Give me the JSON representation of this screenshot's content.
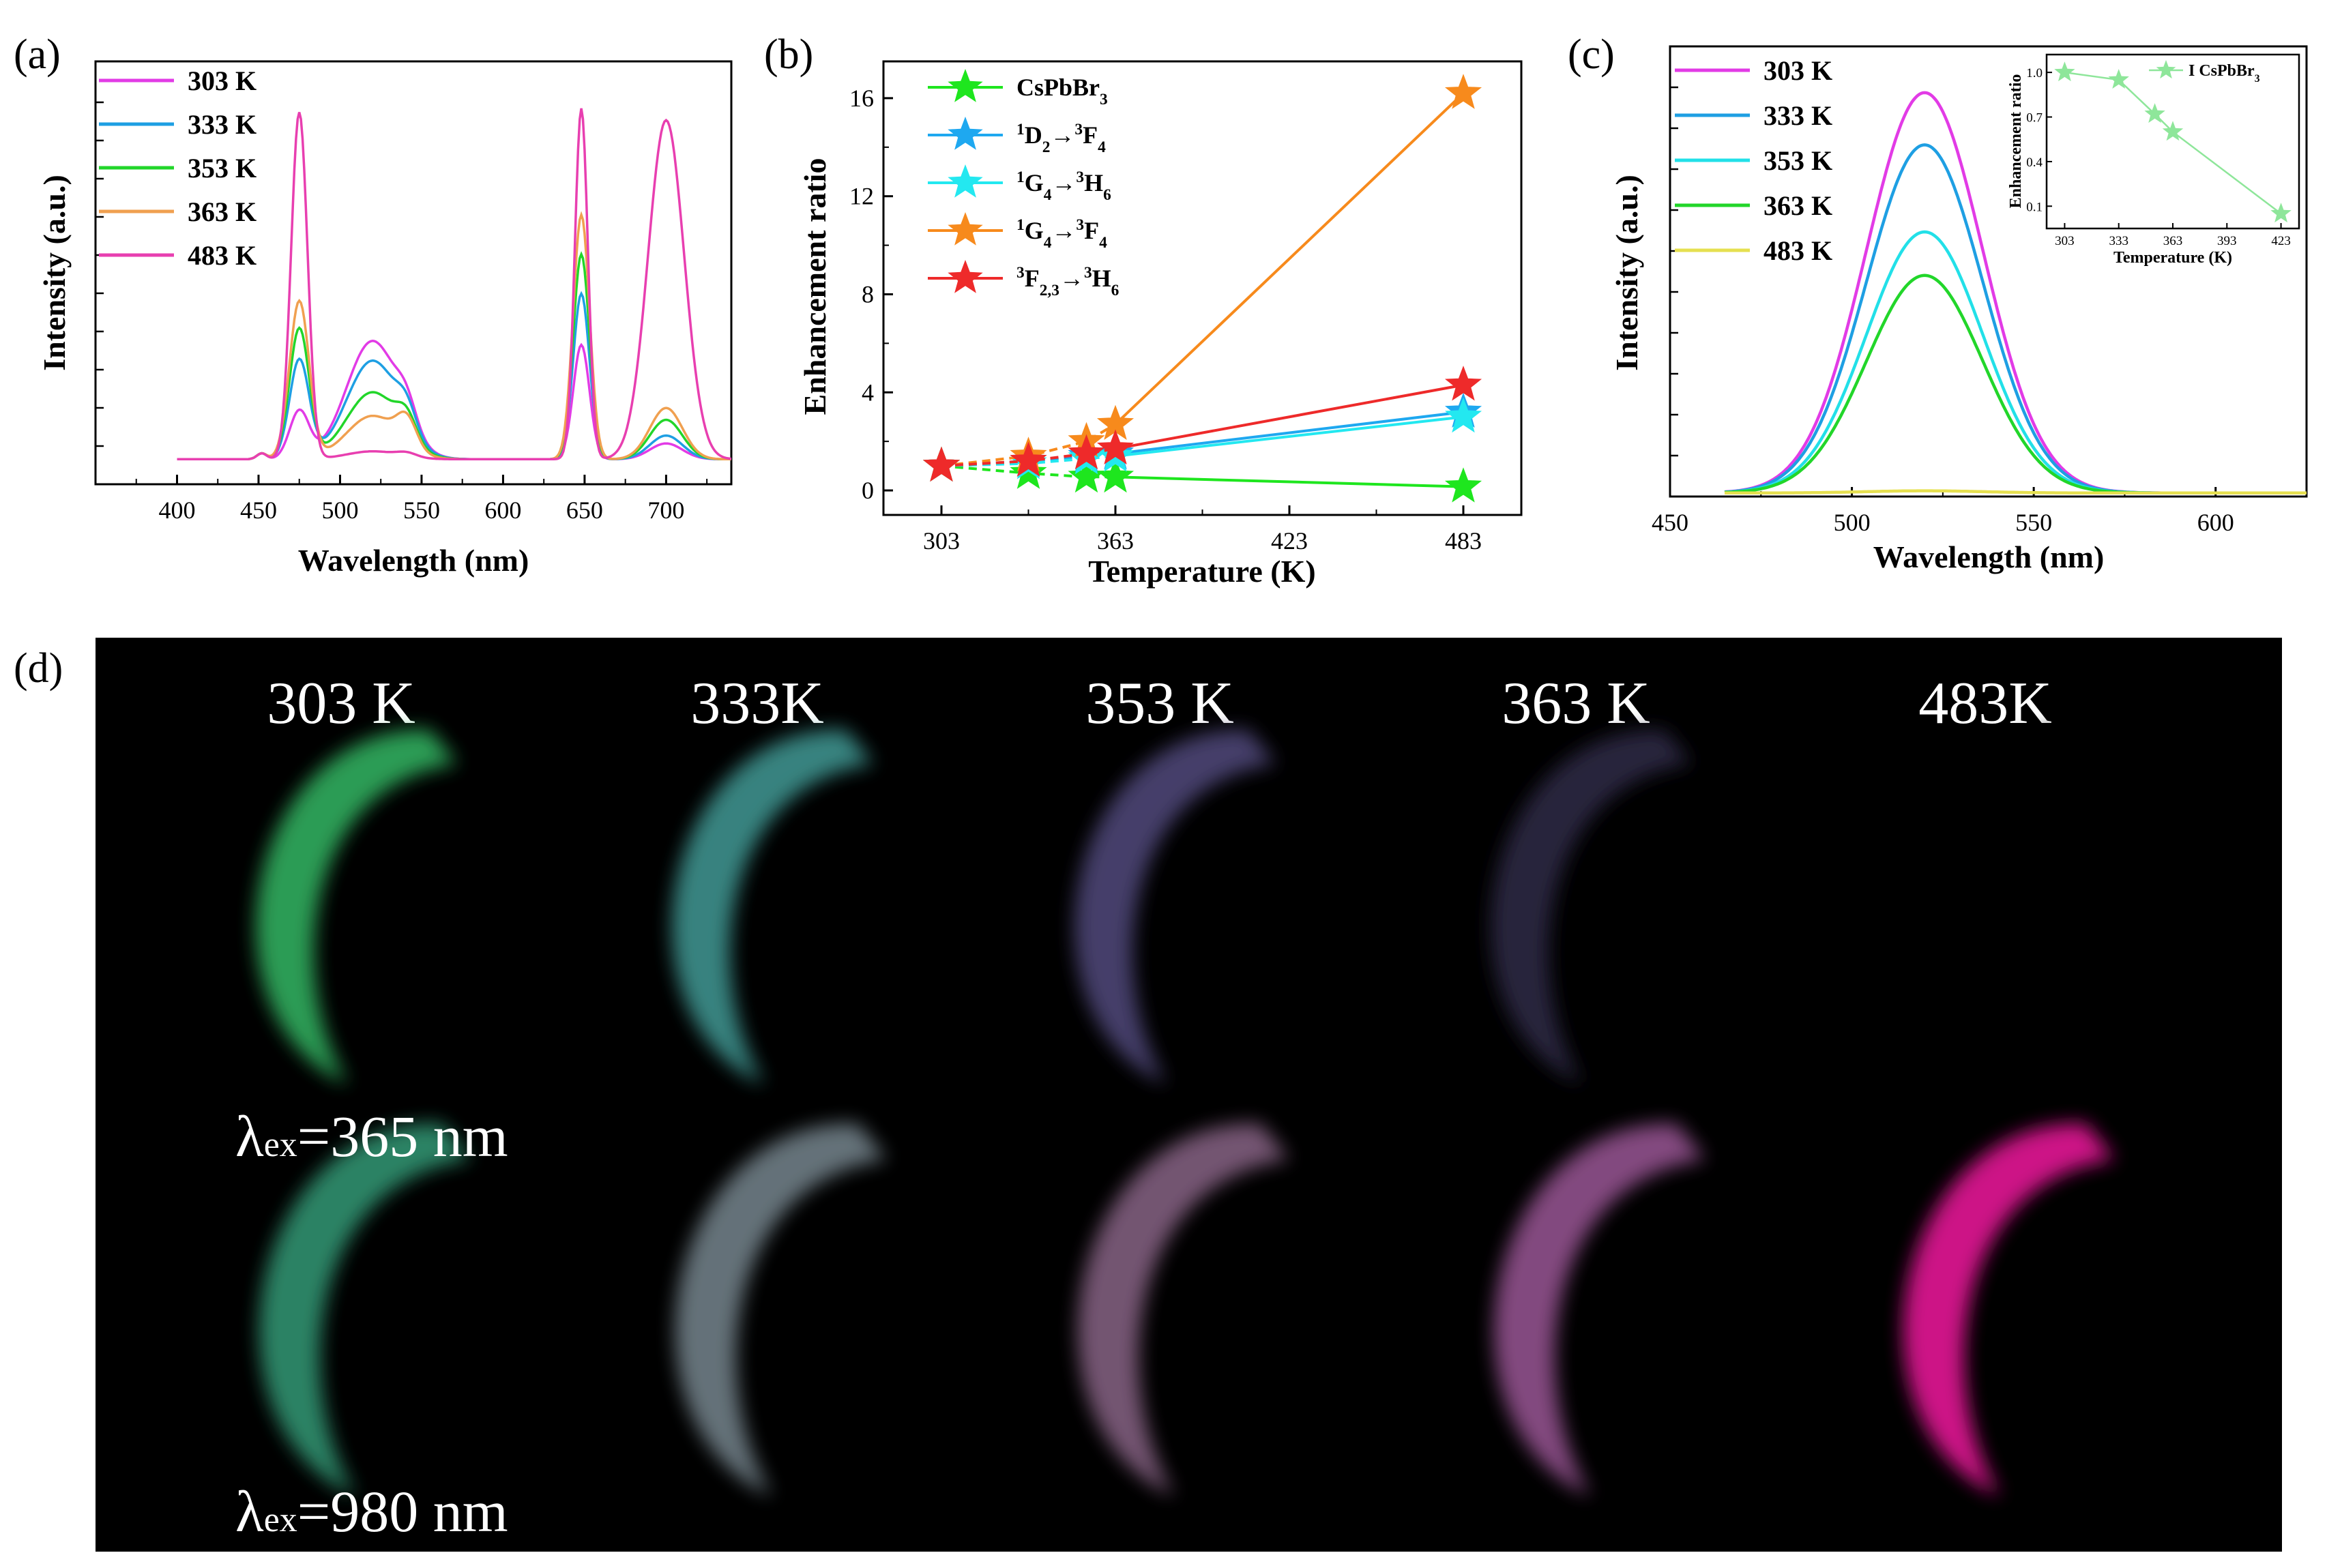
{
  "panel_labels": {
    "a": "(a)",
    "b": "(b)",
    "c": "(c)",
    "d": "(d)"
  },
  "colors": {
    "303K": "#e23be6",
    "333K": "#1e9fe3",
    "353K": "#22d62a",
    "363K": "#f0a050",
    "483K": "#e83fb0",
    "c303K": "#e23be6",
    "c333K": "#1e9fe3",
    "c353K": "#22e0e8",
    "c363K": "#22d62a",
    "c483K": "#e6e050",
    "s_cspbbr3": "#1ee61e",
    "s_1d2": "#1ea8f0",
    "s_1g4_3h6": "#23e8f0",
    "s_1g4_3f4": "#f78a1c",
    "s_3f23": "#ee2a2a"
  },
  "chart_data": [
    {
      "id": "a",
      "type": "line",
      "xlabel": "Wavelength (nm)",
      "ylabel": "Intensity (a.u.)",
      "xlim": [
        350,
        740
      ],
      "ylim": [
        0,
        1
      ],
      "xticks": [
        400,
        450,
        500,
        550,
        600,
        650,
        700
      ],
      "legend": [
        "303 K",
        "333 K",
        "353 K",
        "363 K",
        "483 K"
      ],
      "series": [
        {
          "name": "303 K",
          "baseline": 0.06,
          "peaks": [
            [
              475,
              0.12,
              6
            ],
            [
              520,
              0.3,
              16
            ],
            [
              541,
              0.06,
              6
            ],
            [
              648,
              0.29,
              5
            ],
            [
              700,
              0.04,
              10
            ]
          ]
        },
        {
          "name": "333 K",
          "baseline": 0.06,
          "peaks": [
            [
              475,
              0.25,
              6
            ],
            [
              520,
              0.25,
              16
            ],
            [
              541,
              0.06,
              6
            ],
            [
              648,
              0.42,
              5
            ],
            [
              700,
              0.06,
              10
            ]
          ]
        },
        {
          "name": "353 K",
          "baseline": 0.06,
          "peaks": [
            [
              475,
              0.33,
              6
            ],
            [
              520,
              0.17,
              16
            ],
            [
              541,
              0.06,
              6
            ],
            [
              648,
              0.52,
              5
            ],
            [
              700,
              0.1,
              10
            ]
          ]
        },
        {
          "name": "363 K",
          "baseline": 0.06,
          "peaks": [
            [
              475,
              0.4,
              6
            ],
            [
              520,
              0.11,
              16
            ],
            [
              541,
              0.07,
              6
            ],
            [
              648,
              0.62,
              5
            ],
            [
              700,
              0.13,
              10
            ]
          ]
        },
        {
          "name": "483 K",
          "baseline": 0.06,
          "peaks": [
            [
              475,
              0.88,
              5
            ],
            [
              520,
              0.02,
              16
            ],
            [
              541,
              0.01,
              6
            ],
            [
              648,
              0.89,
              4
            ],
            [
              700,
              0.86,
              11
            ]
          ]
        }
      ]
    },
    {
      "id": "b",
      "type": "scatter",
      "xlabel": "Temperature (K)",
      "ylabel": "Enhancement ratio",
      "xlim": [
        283,
        503
      ],
      "ylim": [
        -1,
        17.5
      ],
      "xticks": [
        303,
        363,
        423,
        483
      ],
      "yticks": [
        0,
        4,
        8,
        12,
        16
      ],
      "x": [
        303,
        333,
        353,
        363,
        483
      ],
      "legend": [
        "CsPbBr3",
        "1D2→3F4",
        "1G4→3H6",
        "1G4→3F4",
        "3F2,3→3H6"
      ],
      "series": [
        {
          "name": "CsPbBr3",
          "values": [
            1.0,
            0.7,
            0.55,
            0.55,
            0.15
          ]
        },
        {
          "name": "1D2→3F4",
          "values": [
            1.0,
            1.2,
            1.4,
            1.5,
            3.2
          ]
        },
        {
          "name": "1G4→3H6",
          "values": [
            1.0,
            1.1,
            1.3,
            1.4,
            3.0
          ]
        },
        {
          "name": "1G4→3F4",
          "values": [
            1.0,
            1.4,
            2.0,
            2.7,
            16.2
          ]
        },
        {
          "name": "3F2,3→3H6",
          "values": [
            1.0,
            1.2,
            1.5,
            1.7,
            4.3
          ]
        }
      ]
    },
    {
      "id": "c",
      "type": "line",
      "xlabel": "Wavelength (nm)",
      "ylabel": "Intensity (a.u.)",
      "xlim": [
        450,
        625
      ],
      "ylim": [
        0,
        1
      ],
      "xticks": [
        450,
        500,
        550,
        600
      ],
      "legend": [
        "303 K",
        "333 K",
        "353 K",
        "363 K",
        "483 K"
      ],
      "center": 520,
      "width": 16,
      "series": [
        {
          "name": "303 K",
          "peak": 0.92
        },
        {
          "name": "333 K",
          "peak": 0.8
        },
        {
          "name": "353 K",
          "peak": 0.6
        },
        {
          "name": "363 K",
          "peak": 0.5
        },
        {
          "name": "483 K",
          "peak": 0.005
        }
      ]
    },
    {
      "id": "c-inset",
      "type": "line",
      "xlabel": "Temperature (K)",
      "ylabel": "Enhancement ratio",
      "xlim": [
        293,
        433
      ],
      "ylim": [
        -0.05,
        1.12
      ],
      "xticks": [
        303,
        333,
        363,
        393,
        423
      ],
      "yticks": [
        0.1,
        0.4,
        0.7,
        1.0
      ],
      "x": [
        303,
        333,
        353,
        363,
        423
      ],
      "legend": [
        "CsPbBr3"
      ],
      "series": [
        {
          "name": "CsPbBr3",
          "values": [
            1.0,
            0.95,
            0.72,
            0.6,
            0.05
          ]
        }
      ]
    }
  ],
  "photo_panel": {
    "temperatures": [
      "303 K",
      "333K",
      "353 K",
      "363 K",
      "483K"
    ],
    "excitation_labels": {
      "row1": {
        "sym": "λ",
        "sub": "ex",
        "rest": "=365 nm"
      },
      "row2": {
        "sym": "λ",
        "sub": "ex",
        "rest": "=980 nm"
      }
    },
    "row1_colors": [
      "#2fa55a",
      "#3b8a86",
      "#4a4270",
      "#2c2640",
      "#050505"
    ],
    "row2_colors": [
      "#2f8a6a",
      "#6a7880",
      "#7a5a78",
      "#8a4e86",
      "#d8158e"
    ]
  }
}
